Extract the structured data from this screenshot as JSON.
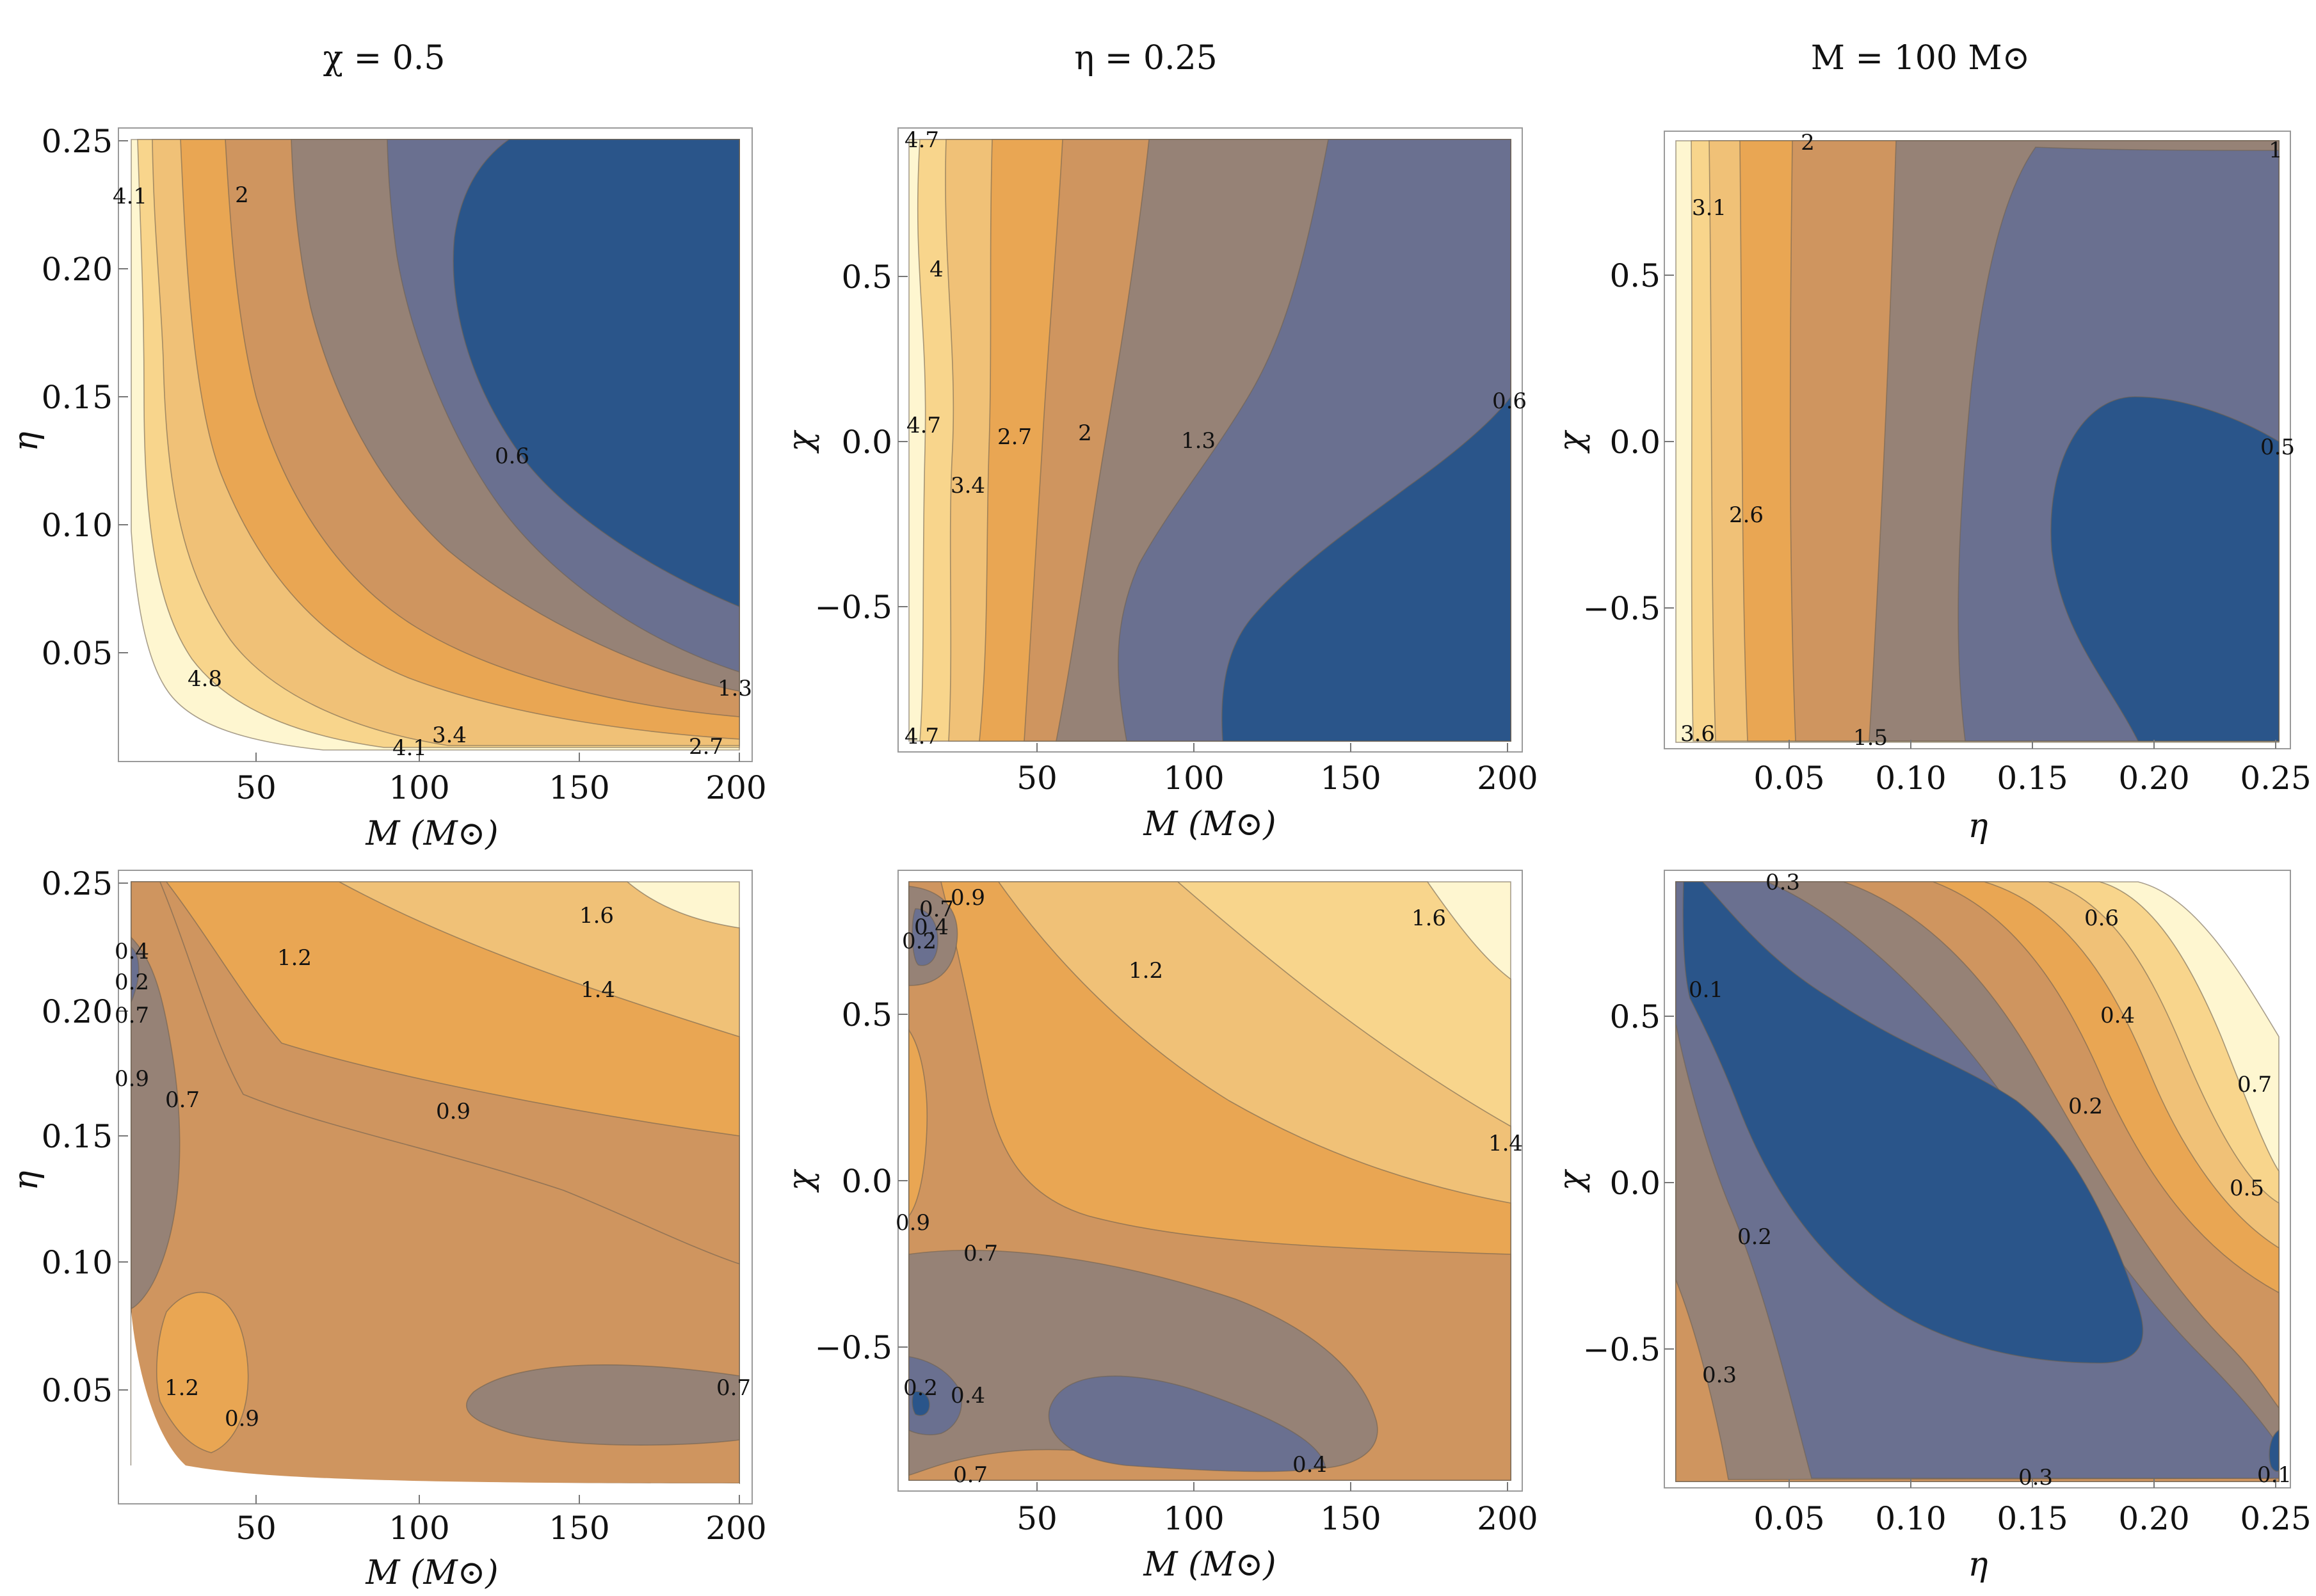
{
  "figure": {
    "column_titles": [
      "χ = 0.5",
      "η = 0.25",
      "M = 100 M⊙"
    ]
  },
  "palette": {
    "band_colors": [
      "#fef6d0",
      "#f8d58c",
      "#f0c177",
      "#e9a653",
      "#cf955f",
      "#968276",
      "#6a7090",
      "#2a558a"
    ]
  },
  "chart_data": [
    {
      "type": "contour",
      "id": "top-left",
      "title": "χ = 0.5",
      "xlabel": "M (M⊙)",
      "ylabel": "η",
      "x_ticks": [
        "50",
        "100",
        "150",
        "200"
      ],
      "y_ticks": [
        "0.05",
        "0.10",
        "0.15",
        "0.20",
        "0.25"
      ],
      "x_range": [
        0,
        200
      ],
      "y_range": [
        0,
        0.25
      ],
      "contour_labels": [
        "4.1",
        "2",
        "0.6",
        "4.8",
        "4.1",
        "3.4",
        "2.7",
        "1.3"
      ]
    },
    {
      "type": "contour",
      "id": "top-middle",
      "title": "η = 0.25",
      "xlabel": "M (M⊙)",
      "ylabel": "χ",
      "x_ticks": [
        "50",
        "100",
        "150",
        "200"
      ],
      "y_ticks": [
        "0.5",
        "0.0",
        "−0.5"
      ],
      "x_range": [
        0,
        200
      ],
      "y_range": [
        -0.9,
        0.9
      ],
      "contour_labels": [
        "4.7",
        "4",
        "4.7",
        "3.4",
        "2.7",
        "2",
        "1.3",
        "0.6",
        "4.7"
      ]
    },
    {
      "type": "contour",
      "id": "top-right",
      "title": "M = 100 M⊙",
      "xlabel": "η",
      "ylabel": "χ",
      "x_ticks": [
        "0.05",
        "0.10",
        "0.15",
        "0.20",
        "0.25"
      ],
      "y_ticks": [
        "0.5",
        "0.0",
        "−0.5"
      ],
      "x_range": [
        0,
        0.25
      ],
      "y_range": [
        -0.9,
        0.9
      ],
      "contour_labels": [
        "2",
        "1",
        "3.1",
        "2.6",
        "0.5",
        "3.6",
        "1.5"
      ]
    },
    {
      "type": "contour",
      "id": "bottom-left",
      "title": "",
      "xlabel": "M (M⊙)",
      "ylabel": "η",
      "x_ticks": [
        "50",
        "100",
        "150",
        "200"
      ],
      "y_ticks": [
        "0.05",
        "0.10",
        "0.15",
        "0.20",
        "0.25"
      ],
      "x_range": [
        0,
        200
      ],
      "y_range": [
        0,
        0.25
      ],
      "contour_labels": [
        "1.6",
        "1.2",
        "1.4",
        "0.4",
        "0.2",
        "0.7",
        "0.9",
        "0.7",
        "0.9",
        "1.2",
        "0.9",
        "0.7"
      ]
    },
    {
      "type": "contour",
      "id": "bottom-middle",
      "title": "",
      "xlabel": "M (M⊙)",
      "ylabel": "χ",
      "x_ticks": [
        "50",
        "100",
        "150",
        "200"
      ],
      "y_ticks": [
        "0.5",
        "0.0",
        "−0.5"
      ],
      "x_range": [
        0,
        200
      ],
      "y_range": [
        -0.9,
        0.9
      ],
      "contour_labels": [
        "0.7",
        "0.9",
        "0.4",
        "0.2",
        "1.2",
        "1.6",
        "1.4",
        "0.9",
        "0.7",
        "0.2",
        "0.4",
        "0.7",
        "0.4"
      ]
    },
    {
      "type": "contour",
      "id": "bottom-right",
      "title": "",
      "xlabel": "η",
      "ylabel": "χ",
      "x_ticks": [
        "0.05",
        "0.10",
        "0.15",
        "0.20",
        "0.25"
      ],
      "y_ticks": [
        "0.5",
        "0.0",
        "−0.5"
      ],
      "x_range": [
        0,
        0.25
      ],
      "y_range": [
        -0.9,
        0.9
      ],
      "contour_labels": [
        "0.3",
        "0.6",
        "0.1",
        "0.4",
        "0.2",
        "0.7",
        "0.5",
        "0.2",
        "0.3",
        "0.3",
        "0.1"
      ]
    }
  ]
}
